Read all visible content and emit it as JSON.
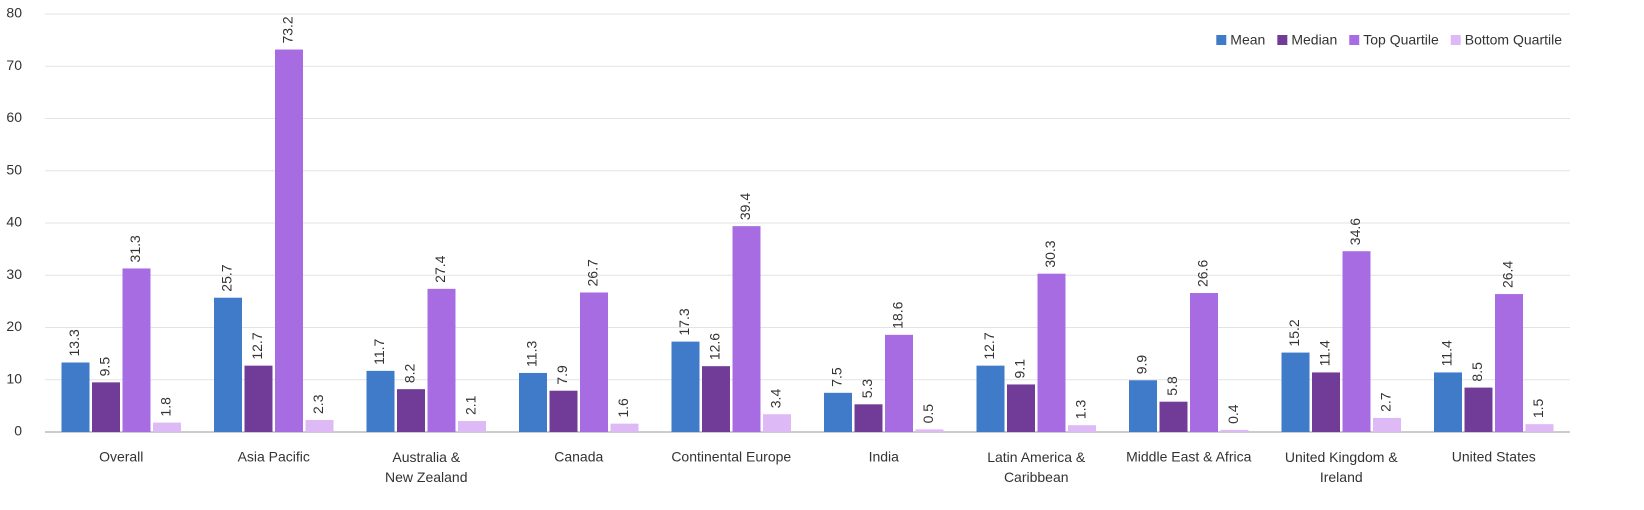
{
  "chart_data": {
    "type": "grouped_bar",
    "categories": [
      "Overall",
      "Asia Pacific",
      "Australia &\nNew Zealand",
      "Canada",
      "Continental Europe",
      "India",
      "Latin America &\nCaribbean",
      "Middle East & Africa",
      "United Kingdom &\nIreland",
      "United States"
    ],
    "series": [
      {
        "name": "Mean",
        "color": "#3f7bc8",
        "values": [
          13.3,
          25.7,
          11.7,
          11.3,
          17.3,
          7.5,
          12.7,
          9.9,
          15.2,
          11.4
        ]
      },
      {
        "name": "Median",
        "color": "#703c97",
        "values": [
          9.5,
          12.7,
          8.2,
          7.9,
          12.6,
          5.3,
          9.1,
          5.8,
          11.4,
          8.5
        ]
      },
      {
        "name": "Top Quartile",
        "color": "#a86ce2",
        "values": [
          31.3,
          73.2,
          27.4,
          26.7,
          39.4,
          18.6,
          30.3,
          26.6,
          34.6,
          26.4
        ]
      },
      {
        "name": "Bottom Quartile",
        "color": "#ddb9f6",
        "values": [
          1.8,
          2.3,
          2.1,
          1.6,
          3.4,
          0.5,
          1.3,
          0.4,
          2.7,
          1.5
        ]
      }
    ],
    "ylim": [
      0,
      80
    ],
    "yticks": [
      0,
      10,
      20,
      30,
      40,
      50,
      60,
      70,
      80
    ],
    "grid": true,
    "legend": "top-right"
  }
}
